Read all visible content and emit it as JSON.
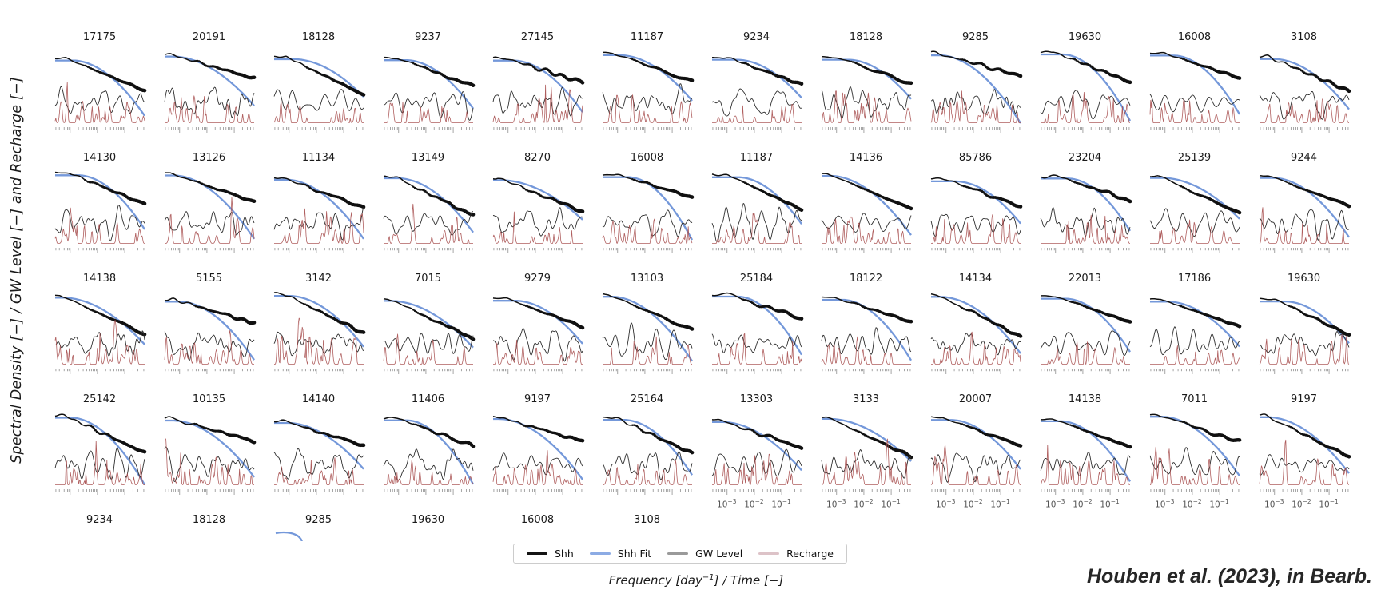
{
  "labels": {
    "y": "Spectral Density [−] / GW Level [−] and Recharge [−]",
    "x_pre": "Frequency [day",
    "x_sup": "−1",
    "x_post": "] / Time [−]"
  },
  "citation": {
    "text": "Houben et al. (2023), in Bearb."
  },
  "legend": {
    "items": [
      {
        "label": "Shh",
        "color": "#141414"
      },
      {
        "label": "Shh Fit",
        "color": "#8cabe4"
      },
      {
        "label": "GW Level",
        "color": "#9a9a9a"
      },
      {
        "label": "Recharge",
        "color": "#ddc3c8"
      }
    ]
  },
  "colors": {
    "shh": "#101010",
    "shh_fit": "#6d92d8",
    "gw_level": "#2e2e2e",
    "recharge": "#a64d4d",
    "tick": "#888888",
    "title_text": "#1a1a1a"
  },
  "grid": {
    "rows": [
      [
        "17175",
        "20191",
        "18128",
        "9237",
        "27145",
        "11187",
        "9234",
        "18128",
        "9285",
        "19630",
        "16008",
        "3108"
      ],
      [
        "14130",
        "13126",
        "11134",
        "13149",
        "8270",
        "16008",
        "11187",
        "14136",
        "85786",
        "23204",
        "25139",
        "9244"
      ],
      [
        "14138",
        "5155",
        "3142",
        "7015",
        "9279",
        "13103",
        "25184",
        "18122",
        "14134",
        "22013",
        "17186",
        "19630"
      ],
      [
        "25142",
        "10135",
        "14140",
        "11406",
        "9197",
        "25164",
        "13303",
        "3133",
        "20007",
        "14138",
        "7011",
        "9197"
      ],
      [
        "9234",
        "18128",
        "9285",
        "19630",
        "16008",
        "3108"
      ]
    ],
    "xticks": [
      {
        "base": "10",
        "exp": "−3"
      },
      {
        "base": "10",
        "exp": "−2"
      },
      {
        "base": "10",
        "exp": "−1"
      }
    ]
  },
  "chart_data": {
    "type": "line",
    "layout": "small-multiples grid, 12 columns x 4 full rows (plus a 5th partially cut-off row under columns 1-6)",
    "subplot_titles_by_row": [
      [
        "17175",
        "20191",
        "18128",
        "9237",
        "27145",
        "11187",
        "9234",
        "18128",
        "9285",
        "19630",
        "16008",
        "3108"
      ],
      [
        "14130",
        "13126",
        "11134",
        "13149",
        "8270",
        "16008",
        "11187",
        "14136",
        "85786",
        "23204",
        "25139",
        "9244"
      ],
      [
        "14138",
        "5155",
        "3142",
        "7015",
        "9279",
        "13103",
        "25184",
        "18122",
        "14134",
        "22013",
        "17186",
        "19630"
      ],
      [
        "25142",
        "10135",
        "14140",
        "11406",
        "9197",
        "25164",
        "13303",
        "3133",
        "20007",
        "14138",
        "7011",
        "9197"
      ],
      [
        "9234",
        "18128",
        "9285",
        "19630",
        "16008",
        "3108"
      ]
    ],
    "series": [
      "Shh",
      "Shh Fit",
      "GW Level",
      "Recharge"
    ],
    "x_scale": "log",
    "x_tick_labels": [
      "10⁻³",
      "10⁻²",
      "10⁻¹"
    ],
    "xlabel": "Frequency [day⁻¹] / Time [−]",
    "ylabel": "Spectral Density [−] / GW Level [−] and Recharge [−]",
    "legend_position": "bottom center, boxed",
    "note": "Each subplot (titled by well ID) shows: Shh spectral density (thick black, plateau then power-law descent with dense markers), smooth blue Shh Fit curve diverging steeply downward, a thin dark GW Level wiggly series in the lower half, and red spiky Recharge series along the bottom. Y-axis values are not labeled; only the bottom row of each column shows x tick labels 10⁻³, 10⁻², 10⁻¹."
  }
}
